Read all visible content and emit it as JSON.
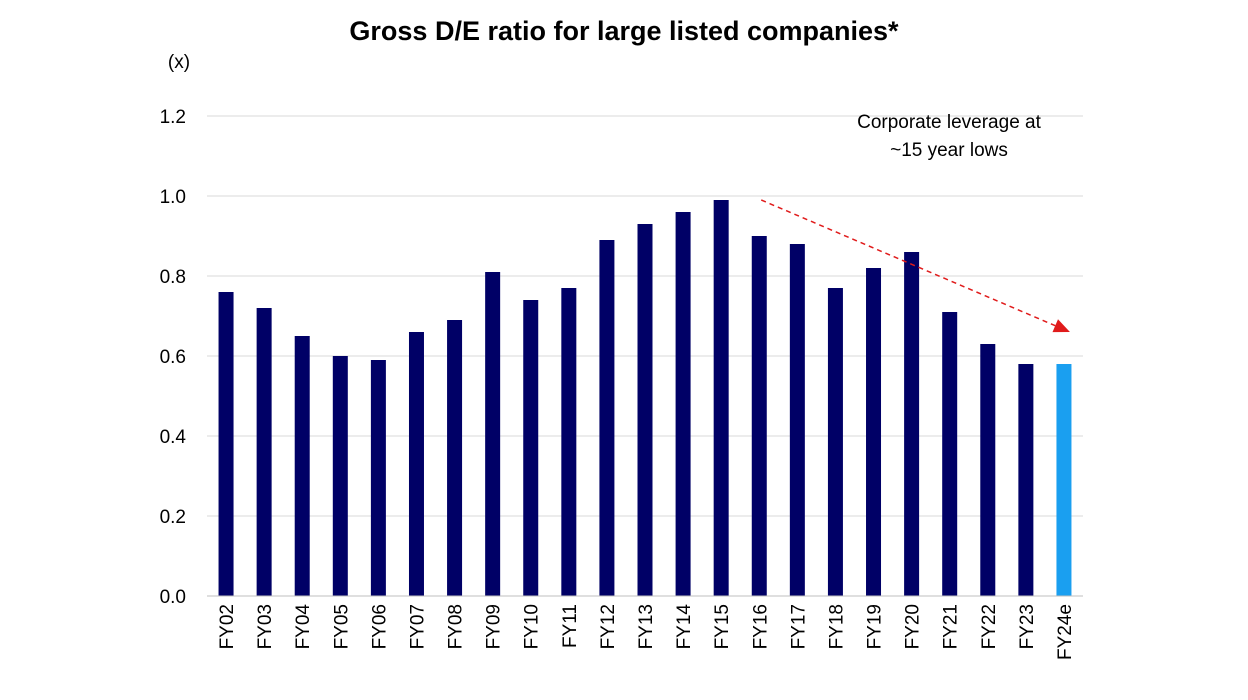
{
  "chart_data": {
    "type": "bar",
    "title": "Gross D/E ratio for large listed companies*",
    "unit_label": "(x)",
    "xlabel": "",
    "ylabel": "",
    "ylim": [
      0,
      1.2
    ],
    "yticks": [
      "0.0",
      "0.2",
      "0.4",
      "0.6",
      "0.8",
      "1.0",
      "1.2"
    ],
    "grid": true,
    "categories": [
      "FY02",
      "FY03",
      "FY04",
      "FY05",
      "FY06",
      "FY07",
      "FY08",
      "FY09",
      "FY10",
      "FY11",
      "FY12",
      "FY13",
      "FY14",
      "FY15",
      "FY16",
      "FY17",
      "FY18",
      "FY19",
      "FY20",
      "FY21",
      "FY22",
      "FY23",
      "FY24e"
    ],
    "values": [
      0.76,
      0.72,
      0.65,
      0.6,
      0.59,
      0.66,
      0.69,
      0.81,
      0.74,
      0.77,
      0.89,
      0.93,
      0.96,
      0.99,
      0.9,
      0.88,
      0.77,
      0.82,
      0.86,
      0.71,
      0.63,
      0.58,
      0.58
    ],
    "colors": {
      "actual": "#000066",
      "estimate": "#1a9ff0",
      "trend_arrow": "#e01b1b"
    },
    "estimate_categories": [
      "FY24e"
    ],
    "annotation": {
      "lines": [
        "Corporate leverage at",
        "~15 year lows"
      ]
    },
    "trend_arrow": {
      "from": {
        "x": "FY16",
        "y": 0.99
      },
      "to": {
        "x": "FY24e",
        "y": 0.66
      }
    }
  }
}
